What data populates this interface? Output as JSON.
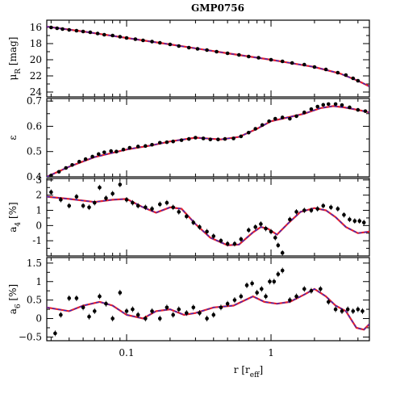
{
  "title": "GMP0756",
  "xlabel": "r [r_eff]",
  "xlabel_main": "r [r",
  "xlabel_sub": "eff",
  "xlabel_close": "]",
  "colors": {
    "model_red": "#e8202a",
    "model_blue": "#2a2ad0",
    "points": "#000000"
  },
  "chart_data": [
    {
      "type": "scatter",
      "panel": "surface-brightness",
      "ylabel": "μ_R [mag]",
      "ylabel_main": "μ",
      "ylabel_sub": "R",
      "ylabel_unit": " [mag]",
      "xscale": "log",
      "xlim": [
        0.028,
        4.8
      ],
      "ylim": [
        24.6,
        15.1
      ],
      "yticks": [
        16,
        18,
        20,
        22,
        24
      ],
      "xticks": [
        0.1,
        1
      ],
      "xticklabels": [
        "0.1",
        "1"
      ],
      "points": [
        [
          0.03,
          16.0
        ],
        [
          0.033,
          16.1
        ],
        [
          0.036,
          16.2
        ],
        [
          0.04,
          16.3
        ],
        [
          0.045,
          16.4
        ],
        [
          0.05,
          16.5
        ],
        [
          0.056,
          16.6
        ],
        [
          0.063,
          16.75
        ],
        [
          0.07,
          16.9
        ],
        [
          0.08,
          17.0
        ],
        [
          0.09,
          17.15
        ],
        [
          0.1,
          17.3
        ],
        [
          0.115,
          17.45
        ],
        [
          0.13,
          17.6
        ],
        [
          0.15,
          17.75
        ],
        [
          0.17,
          17.9
        ],
        [
          0.2,
          18.1
        ],
        [
          0.23,
          18.3
        ],
        [
          0.27,
          18.5
        ],
        [
          0.31,
          18.65
        ],
        [
          0.36,
          18.8
        ],
        [
          0.42,
          19.0
        ],
        [
          0.5,
          19.2
        ],
        [
          0.6,
          19.4
        ],
        [
          0.7,
          19.6
        ],
        [
          0.82,
          19.75
        ],
        [
          1.0,
          20.0
        ],
        [
          1.2,
          20.2
        ],
        [
          1.4,
          20.4
        ],
        [
          1.7,
          20.6
        ],
        [
          2.0,
          20.9
        ],
        [
          2.4,
          21.2
        ],
        [
          2.9,
          21.6
        ],
        [
          3.3,
          21.9
        ],
        [
          3.7,
          22.3
        ],
        [
          4.0,
          22.6
        ]
      ],
      "model": [
        [
          0.028,
          15.9
        ],
        [
          0.05,
          16.5
        ],
        [
          0.1,
          17.3
        ],
        [
          0.2,
          18.1
        ],
        [
          0.5,
          19.2
        ],
        [
          1.0,
          20.0
        ],
        [
          2.0,
          20.9
        ],
        [
          3.0,
          21.7
        ],
        [
          4.0,
          22.6
        ],
        [
          4.8,
          23.3
        ]
      ]
    },
    {
      "type": "scatter",
      "panel": "ellipticity",
      "ylabel": "ε",
      "ylabel_main": "ε",
      "ylabel_sub": "",
      "ylabel_unit": "",
      "xscale": "log",
      "xlim": [
        0.028,
        4.8
      ],
      "ylim": [
        0.4,
        0.71
      ],
      "yticks": [
        0.4,
        0.5,
        0.6,
        0.7
      ],
      "yticklabels": [
        "0.4",
        "0.5",
        "0.6",
        "0.7"
      ],
      "xticks": [
        0.1,
        1
      ],
      "points": [
        [
          0.03,
          0.405
        ],
        [
          0.034,
          0.42
        ],
        [
          0.038,
          0.435
        ],
        [
          0.042,
          0.447
        ],
        [
          0.047,
          0.46
        ],
        [
          0.052,
          0.47
        ],
        [
          0.058,
          0.48
        ],
        [
          0.064,
          0.49
        ],
        [
          0.07,
          0.497
        ],
        [
          0.078,
          0.502
        ],
        [
          0.085,
          0.5
        ],
        [
          0.095,
          0.508
        ],
        [
          0.105,
          0.515
        ],
        [
          0.12,
          0.52
        ],
        [
          0.135,
          0.522
        ],
        [
          0.15,
          0.527
        ],
        [
          0.17,
          0.535
        ],
        [
          0.19,
          0.537
        ],
        [
          0.21,
          0.54
        ],
        [
          0.24,
          0.545
        ],
        [
          0.27,
          0.55
        ],
        [
          0.3,
          0.555
        ],
        [
          0.34,
          0.552
        ],
        [
          0.38,
          0.548
        ],
        [
          0.43,
          0.548
        ],
        [
          0.48,
          0.55
        ],
        [
          0.55,
          0.552
        ],
        [
          0.62,
          0.56
        ],
        [
          0.7,
          0.575
        ],
        [
          0.78,
          0.59
        ],
        [
          0.87,
          0.605
        ],
        [
          0.97,
          0.62
        ],
        [
          1.07,
          0.63
        ],
        [
          1.2,
          0.635
        ],
        [
          1.35,
          0.63
        ],
        [
          1.5,
          0.64
        ],
        [
          1.7,
          0.655
        ],
        [
          1.9,
          0.668
        ],
        [
          2.1,
          0.678
        ],
        [
          2.3,
          0.685
        ],
        [
          2.5,
          0.688
        ],
        [
          2.8,
          0.688
        ],
        [
          3.1,
          0.684
        ],
        [
          3.5,
          0.675
        ],
        [
          4.0,
          0.665
        ],
        [
          4.5,
          0.66
        ]
      ],
      "model": [
        [
          0.028,
          0.4
        ],
        [
          0.04,
          0.44
        ],
        [
          0.06,
          0.478
        ],
        [
          0.1,
          0.508
        ],
        [
          0.15,
          0.525
        ],
        [
          0.2,
          0.54
        ],
        [
          0.3,
          0.555
        ],
        [
          0.45,
          0.548
        ],
        [
          0.6,
          0.558
        ],
        [
          0.8,
          0.59
        ],
        [
          1.0,
          0.62
        ],
        [
          1.3,
          0.635
        ],
        [
          1.7,
          0.65
        ],
        [
          2.2,
          0.672
        ],
        [
          2.7,
          0.68
        ],
        [
          3.2,
          0.675
        ],
        [
          4.0,
          0.665
        ],
        [
          4.8,
          0.655
        ]
      ]
    },
    {
      "type": "scatter",
      "panel": "a4",
      "ylabel": "a_4 [%]",
      "ylabel_main": "a",
      "ylabel_sub": "4",
      "ylabel_unit": " [%]",
      "xscale": "log",
      "xlim": [
        0.028,
        4.8
      ],
      "ylim": [
        -2.0,
        3.1
      ],
      "yticks": [
        -1,
        0,
        1,
        2,
        3
      ],
      "xticks": [
        0.1,
        1
      ],
      "points": [
        [
          0.03,
          2.2
        ],
        [
          0.035,
          1.7
        ],
        [
          0.04,
          1.3
        ],
        [
          0.045,
          1.9
        ],
        [
          0.05,
          1.3
        ],
        [
          0.055,
          1.2
        ],
        [
          0.06,
          1.5
        ],
        [
          0.065,
          2.5
        ],
        [
          0.072,
          1.8
        ],
        [
          0.08,
          2.1
        ],
        [
          0.09,
          2.7
        ],
        [
          0.1,
          1.7
        ],
        [
          0.11,
          1.5
        ],
        [
          0.12,
          1.3
        ],
        [
          0.135,
          1.2
        ],
        [
          0.15,
          1.1
        ],
        [
          0.17,
          1.4
        ],
        [
          0.19,
          1.5
        ],
        [
          0.21,
          1.2
        ],
        [
          0.23,
          0.9
        ],
        [
          0.26,
          0.6
        ],
        [
          0.29,
          0.2
        ],
        [
          0.32,
          -0.1
        ],
        [
          0.36,
          -0.4
        ],
        [
          0.4,
          -0.7
        ],
        [
          0.45,
          -1.0
        ],
        [
          0.5,
          -1.2
        ],
        [
          0.56,
          -1.2
        ],
        [
          0.62,
          -0.9
        ],
        [
          0.7,
          -0.3
        ],
        [
          0.78,
          -0.1
        ],
        [
          0.85,
          0.1
        ],
        [
          0.92,
          -0.2
        ],
        [
          1.0,
          -0.4
        ],
        [
          1.07,
          -0.8
        ],
        [
          1.12,
          -1.3
        ],
        [
          1.2,
          -1.8
        ],
        [
          1.35,
          0.4
        ],
        [
          1.5,
          0.9
        ],
        [
          1.7,
          1.0
        ],
        [
          1.9,
          1.0
        ],
        [
          2.1,
          1.1
        ],
        [
          2.3,
          1.3
        ],
        [
          2.6,
          1.2
        ],
        [
          2.9,
          1.1
        ],
        [
          3.2,
          0.7
        ],
        [
          3.5,
          0.4
        ],
        [
          3.8,
          0.3
        ],
        [
          4.1,
          0.3
        ],
        [
          4.4,
          0.2
        ]
      ],
      "model": [
        [
          0.028,
          1.9
        ],
        [
          0.04,
          1.75
        ],
        [
          0.06,
          1.55
        ],
        [
          0.08,
          1.7
        ],
        [
          0.1,
          1.75
        ],
        [
          0.13,
          1.2
        ],
        [
          0.16,
          0.85
        ],
        [
          0.2,
          1.2
        ],
        [
          0.24,
          1.1
        ],
        [
          0.3,
          0.1
        ],
        [
          0.38,
          -0.8
        ],
        [
          0.5,
          -1.3
        ],
        [
          0.6,
          -1.25
        ],
        [
          0.75,
          -0.45
        ],
        [
          0.85,
          -0.1
        ],
        [
          0.95,
          -0.2
        ],
        [
          1.1,
          -0.6
        ],
        [
          1.3,
          0.1
        ],
        [
          1.6,
          0.9
        ],
        [
          2.0,
          1.15
        ],
        [
          2.4,
          1.0
        ],
        [
          2.8,
          0.55
        ],
        [
          3.3,
          -0.1
        ],
        [
          4.0,
          -0.5
        ],
        [
          4.8,
          -0.4
        ]
      ]
    },
    {
      "type": "scatter",
      "panel": "a6",
      "ylabel": "a_6 [%]",
      "ylabel_main": "a",
      "ylabel_sub": "6",
      "ylabel_unit": " [%]",
      "xscale": "log",
      "xlim": [
        0.028,
        4.8
      ],
      "ylim": [
        -0.6,
        1.65
      ],
      "yticks": [
        -0.5,
        0,
        0.5,
        1,
        1.5
      ],
      "yticklabels": [
        "−0.5",
        "0",
        "0.5",
        "1",
        "1.5"
      ],
      "xticks": [
        0.1,
        1
      ],
      "points": [
        [
          0.032,
          -0.4
        ],
        [
          0.035,
          0.1
        ],
        [
          0.04,
          0.55
        ],
        [
          0.045,
          0.55
        ],
        [
          0.05,
          0.3
        ],
        [
          0.055,
          0.05
        ],
        [
          0.06,
          0.2
        ],
        [
          0.065,
          0.6
        ],
        [
          0.072,
          0.4
        ],
        [
          0.08,
          0.0
        ],
        [
          0.09,
          0.7
        ],
        [
          0.1,
          0.2
        ],
        [
          0.11,
          0.25
        ],
        [
          0.12,
          0.1
        ],
        [
          0.135,
          0.0
        ],
        [
          0.15,
          0.2
        ],
        [
          0.17,
          0.0
        ],
        [
          0.19,
          0.3
        ],
        [
          0.21,
          0.1
        ],
        [
          0.23,
          0.25
        ],
        [
          0.26,
          0.15
        ],
        [
          0.29,
          0.3
        ],
        [
          0.32,
          0.15
        ],
        [
          0.36,
          0.0
        ],
        [
          0.4,
          0.1
        ],
        [
          0.45,
          0.3
        ],
        [
          0.5,
          0.4
        ],
        [
          0.56,
          0.5
        ],
        [
          0.62,
          0.6
        ],
        [
          0.68,
          0.9
        ],
        [
          0.74,
          0.95
        ],
        [
          0.8,
          0.7
        ],
        [
          0.86,
          0.8
        ],
        [
          0.92,
          0.6
        ],
        [
          0.98,
          1.0
        ],
        [
          1.05,
          1.0
        ],
        [
          1.12,
          1.2
        ],
        [
          1.2,
          1.3
        ],
        [
          1.35,
          0.5
        ],
        [
          1.5,
          0.6
        ],
        [
          1.7,
          0.8
        ],
        [
          1.9,
          0.75
        ],
        [
          2.2,
          0.8
        ],
        [
          2.5,
          0.45
        ],
        [
          2.8,
          0.25
        ],
        [
          3.1,
          0.2
        ],
        [
          3.4,
          0.25
        ],
        [
          3.7,
          0.2
        ],
        [
          4.0,
          0.25
        ],
        [
          4.3,
          0.2
        ]
      ],
      "model": [
        [
          0.028,
          0.3
        ],
        [
          0.04,
          0.2
        ],
        [
          0.05,
          0.35
        ],
        [
          0.065,
          0.45
        ],
        [
          0.08,
          0.35
        ],
        [
          0.1,
          0.1
        ],
        [
          0.13,
          0.0
        ],
        [
          0.16,
          0.2
        ],
        [
          0.2,
          0.25
        ],
        [
          0.25,
          0.1
        ],
        [
          0.3,
          0.15
        ],
        [
          0.4,
          0.3
        ],
        [
          0.55,
          0.35
        ],
        [
          0.75,
          0.6
        ],
        [
          0.9,
          0.45
        ],
        [
          1.1,
          0.4
        ],
        [
          1.35,
          0.45
        ],
        [
          1.7,
          0.65
        ],
        [
          2.0,
          0.8
        ],
        [
          2.4,
          0.6
        ],
        [
          2.8,
          0.35
        ],
        [
          3.3,
          0.2
        ],
        [
          3.9,
          -0.25
        ],
        [
          4.4,
          -0.3
        ],
        [
          4.8,
          -0.15
        ]
      ]
    }
  ]
}
